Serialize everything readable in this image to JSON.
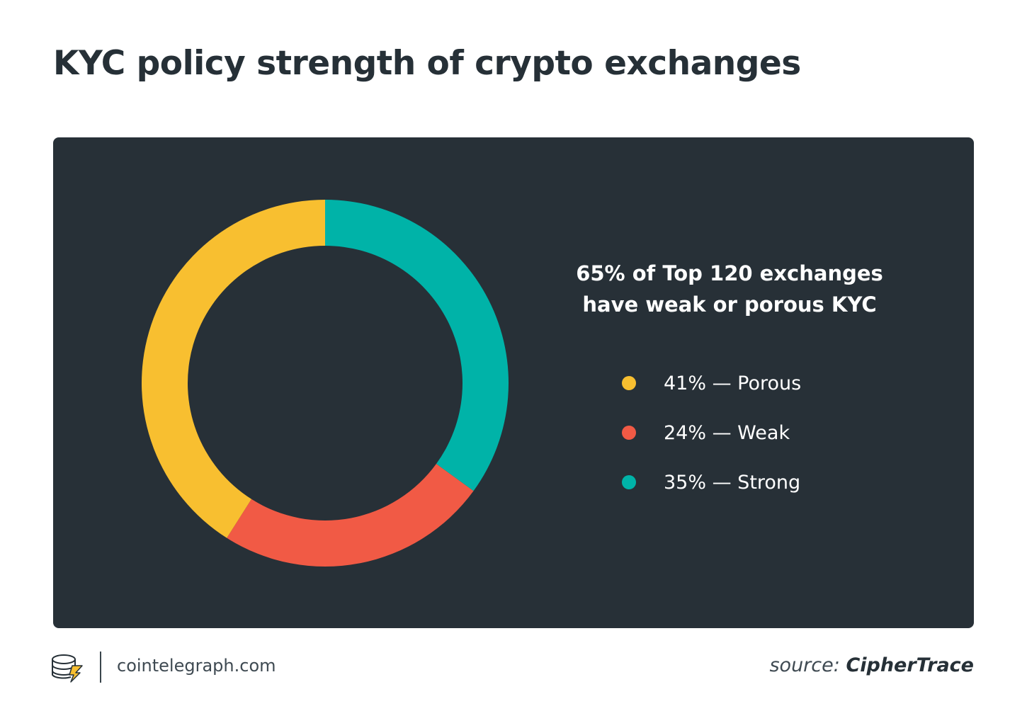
{
  "title": "KYC policy strength of crypto exchanges",
  "headline": {
    "line1": "65% of Top 120 exchanges",
    "line2": "have weak or porous KYC"
  },
  "colors": {
    "panel_bg": "#273037",
    "porous": "#F8BF30",
    "weak": "#F15A45",
    "strong": "#00B3A8"
  },
  "legend": [
    {
      "label": "41% — Porous",
      "color": "#F8BF30"
    },
    {
      "label": "24% — Weak",
      "color": "#F15A45"
    },
    {
      "label": "35% — Strong",
      "color": "#00B3A8"
    }
  ],
  "chart_data": {
    "type": "pie",
    "subtype": "donut",
    "title": "KYC policy strength of crypto exchanges",
    "start_angle_deg": 0,
    "direction": "clockwise-from-top",
    "order": [
      "Strong",
      "Weak",
      "Porous"
    ],
    "series": [
      {
        "name": "Porous",
        "value": 41,
        "color": "#F8BF30"
      },
      {
        "name": "Weak",
        "value": 24,
        "color": "#F15A45"
      },
      {
        "name": "Strong",
        "value": 35,
        "color": "#00B3A8"
      }
    ],
    "unit": "%"
  },
  "footer": {
    "logo_icon": "cointelegraph-logo-icon",
    "site": "cointelegraph.com",
    "source_prefix": "source:",
    "source_name": "CipherTrace"
  }
}
